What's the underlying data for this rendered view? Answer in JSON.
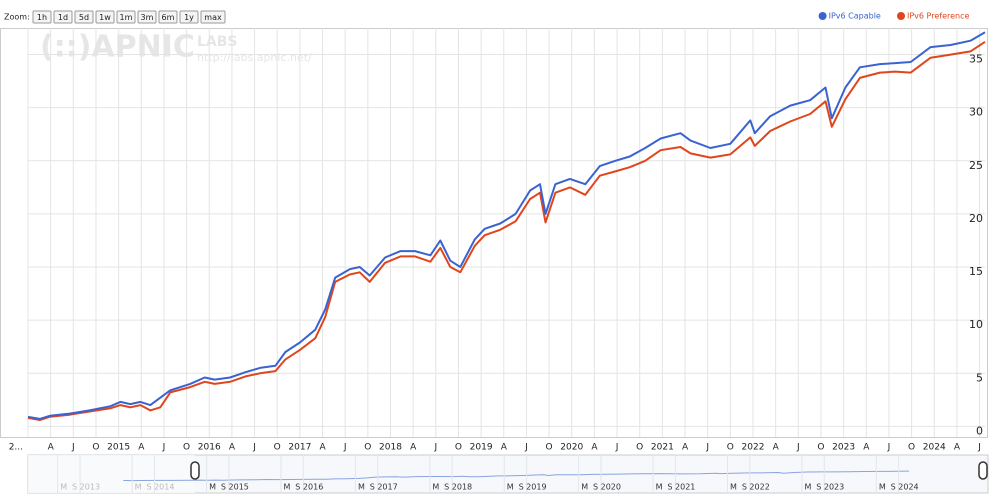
{
  "zoom": {
    "label": "Zoom:",
    "buttons": [
      "1h",
      "1d",
      "5d",
      "1w",
      "1m",
      "3m",
      "6m",
      "1y",
      "max"
    ]
  },
  "watermark": {
    "logo": "(::)APNIC",
    "labs": "LABS",
    "url": "http://labs.apnic.net/"
  },
  "chart_data": {
    "type": "line",
    "x": [
      2014.0,
      2014.13,
      2014.24,
      2014.46,
      2014.68,
      2014.91,
      2015.02,
      2015.13,
      2015.24,
      2015.35,
      2015.46,
      2015.57,
      2015.79,
      2015.95,
      2016.06,
      2016.23,
      2016.4,
      2016.56,
      2016.73,
      2016.84,
      2017.0,
      2017.17,
      2017.28,
      2017.39,
      2017.55,
      2017.66,
      2017.77,
      2017.94,
      2018.11,
      2018.27,
      2018.44,
      2018.55,
      2018.66,
      2018.77,
      2018.93,
      2019.04,
      2019.21,
      2019.38,
      2019.54,
      2019.65,
      2019.71,
      2019.82,
      2019.98,
      2020.15,
      2020.31,
      2020.48,
      2020.64,
      2020.81,
      2020.98,
      2021.2,
      2021.31,
      2021.53,
      2021.75,
      2021.97,
      2022.02,
      2022.19,
      2022.41,
      2022.63,
      2022.8,
      2022.87,
      2023.02,
      2023.18,
      2023.4,
      2023.57,
      2023.74,
      2023.96,
      2024.18,
      2024.4,
      2024.56
    ],
    "series": [
      {
        "name": "IPv6 Capable",
        "color": "#3a63d2",
        "values": [
          0.9,
          0.7,
          1.0,
          1.2,
          1.5,
          1.9,
          2.3,
          2.1,
          2.3,
          2.0,
          2.7,
          3.4,
          4.0,
          4.6,
          4.4,
          4.6,
          5.1,
          5.5,
          5.7,
          7.0,
          7.9,
          9.1,
          11.0,
          14.0,
          14.8,
          15.0,
          14.2,
          15.9,
          16.5,
          16.5,
          16.1,
          17.5,
          15.6,
          15.0,
          17.6,
          18.6,
          19.1,
          20.0,
          22.2,
          22.8,
          20.0,
          22.8,
          23.3,
          22.8,
          24.5,
          25.0,
          25.4,
          26.2,
          27.1,
          27.6,
          26.9,
          26.2,
          26.6,
          28.8,
          27.6,
          29.2,
          30.2,
          30.7,
          31.9,
          29.0,
          31.9,
          33.8,
          34.1,
          34.2,
          34.3,
          35.7,
          35.9,
          36.3,
          37.1
        ]
      },
      {
        "name": "IPv6 Preference",
        "color": "#e0461c",
        "values": [
          0.8,
          0.6,
          0.9,
          1.1,
          1.4,
          1.7,
          2.0,
          1.8,
          2.0,
          1.5,
          1.8,
          3.2,
          3.7,
          4.2,
          4.0,
          4.2,
          4.7,
          5.0,
          5.2,
          6.3,
          7.2,
          8.3,
          10.3,
          13.6,
          14.3,
          14.5,
          13.6,
          15.4,
          16.0,
          16.0,
          15.5,
          16.8,
          15.0,
          14.5,
          17.0,
          18.0,
          18.5,
          19.3,
          21.4,
          22.0,
          19.2,
          22.0,
          22.5,
          21.8,
          23.6,
          24.0,
          24.4,
          25.0,
          26.0,
          26.3,
          25.7,
          25.3,
          25.6,
          27.2,
          26.4,
          27.8,
          28.7,
          29.4,
          30.6,
          28.2,
          30.8,
          32.8,
          33.3,
          33.4,
          33.3,
          34.7,
          35.0,
          35.3,
          36.2
        ]
      }
    ],
    "xlim": [
      2014.0,
      2024.56
    ],
    "xticks": [
      {
        "value": 2014.0,
        "label": "2..."
      },
      {
        "value": 2014.25,
        "label": "A"
      },
      {
        "value": 2014.5,
        "label": "J"
      },
      {
        "value": 2014.75,
        "label": "O"
      },
      2015,
      {
        "value": 2015.25,
        "label": "A"
      },
      {
        "value": 2015.5,
        "label": "J"
      },
      {
        "value": 2015.75,
        "label": "O"
      },
      2016,
      {
        "value": 2016.25,
        "label": "A"
      },
      {
        "value": 2016.5,
        "label": "J"
      },
      {
        "value": 2016.75,
        "label": "O"
      },
      2017,
      {
        "value": 2017.25,
        "label": "A"
      },
      {
        "value": 2017.5,
        "label": "J"
      },
      {
        "value": 2017.75,
        "label": "O"
      },
      2018,
      {
        "value": 2018.25,
        "label": "A"
      },
      {
        "value": 2018.5,
        "label": "J"
      },
      {
        "value": 2018.75,
        "label": "O"
      },
      2019,
      {
        "value": 2019.25,
        "label": "A"
      },
      {
        "value": 2019.5,
        "label": "J"
      },
      {
        "value": 2019.75,
        "label": "O"
      },
      2020,
      {
        "value": 2020.25,
        "label": "A"
      },
      {
        "value": 2020.5,
        "label": "J"
      },
      {
        "value": 2020.75,
        "label": "O"
      },
      2021,
      {
        "value": 2021.25,
        "label": "A"
      },
      {
        "value": 2021.5,
        "label": "J"
      },
      {
        "value": 2021.75,
        "label": "O"
      },
      2022,
      {
        "value": 2022.25,
        "label": "A"
      },
      {
        "value": 2022.5,
        "label": "J"
      },
      {
        "value": 2022.75,
        "label": "O"
      },
      2023,
      {
        "value": 2023.25,
        "label": "A"
      },
      {
        "value": 2023.5,
        "label": "J"
      },
      {
        "value": 2023.75,
        "label": "O"
      },
      2024,
      {
        "value": 2024.25,
        "label": "A"
      },
      {
        "value": 2024.5,
        "label": "J"
      }
    ],
    "ylim": [
      -1,
      37.5
    ],
    "yticks": [
      0,
      5,
      10,
      15,
      20,
      25,
      30,
      35
    ],
    "grid": true,
    "legend": "top-right",
    "navigator": {
      "xlim": [
        2012.72,
        2025.62
      ],
      "ticks": [
        {
          "value": 2013.2,
          "label": "M"
        },
        {
          "value": 2013.5,
          "label": "S 2013"
        },
        {
          "value": 2014.2,
          "label": "M"
        },
        {
          "value": 2014.5,
          "label": "S 2014"
        },
        {
          "value": 2015.2,
          "label": "M"
        },
        {
          "value": 2015.5,
          "label": "S 2015"
        },
        {
          "value": 2016.2,
          "label": "M"
        },
        {
          "value": 2016.5,
          "label": "S 2016"
        },
        {
          "value": 2017.2,
          "label": "M"
        },
        {
          "value": 2017.5,
          "label": "S 2017"
        },
        {
          "value": 2018.2,
          "label": "M"
        },
        {
          "value": 2018.5,
          "label": "S 2018"
        },
        {
          "value": 2019.2,
          "label": "M"
        },
        {
          "value": 2019.5,
          "label": "S 2019"
        },
        {
          "value": 2020.2,
          "label": "M"
        },
        {
          "value": 2020.5,
          "label": "S 2020"
        },
        {
          "value": 2021.2,
          "label": "M"
        },
        {
          "value": 2021.5,
          "label": "S 2021"
        },
        {
          "value": 2022.2,
          "label": "M"
        },
        {
          "value": 2022.5,
          "label": "S 2022"
        },
        {
          "value": 2023.2,
          "label": "M"
        },
        {
          "value": 2023.5,
          "label": "S 2023"
        },
        {
          "value": 2024.2,
          "label": "M"
        },
        {
          "value": 2024.5,
          "label": "S 2024"
        }
      ]
    }
  }
}
